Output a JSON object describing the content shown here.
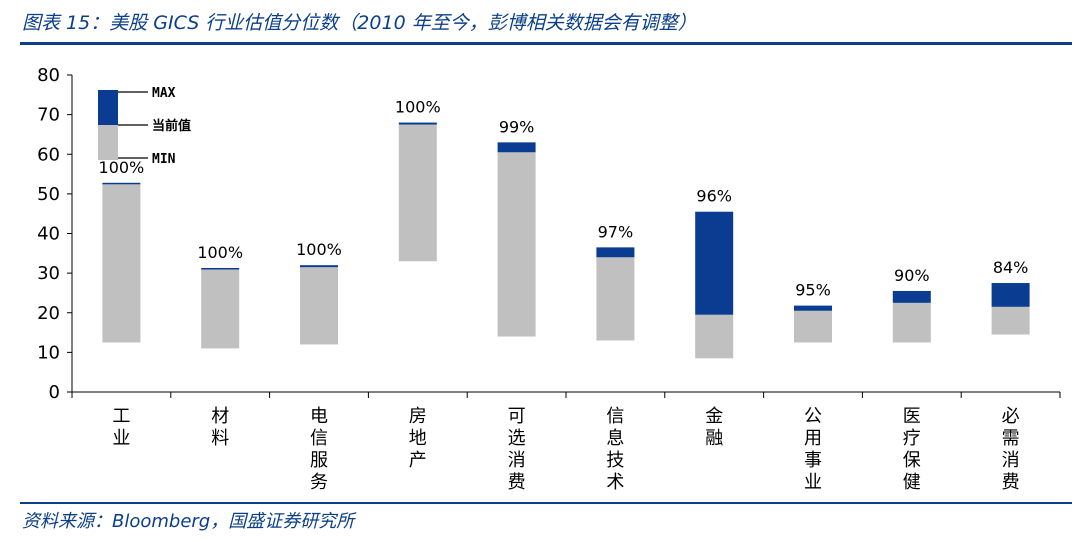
{
  "header": {
    "title": "图表 15：美股 GICS 行业估值分位数（2010 年至今，彭博相关数据会有调整）"
  },
  "footer": {
    "source": "资料来源：Bloomberg，国盛证券研究所"
  },
  "legend": {
    "max_label": "MAX",
    "current_label": "当前值",
    "min_label": "MIN"
  },
  "colors": {
    "range": "#c0c0c0",
    "upper": "#0a3d91",
    "rule": "#0b3f8a"
  },
  "chart_data": {
    "type": "bar",
    "subtype": "floating-range",
    "ylim": [
      0,
      80
    ],
    "yticks": [
      0,
      10,
      20,
      30,
      40,
      50,
      60,
      70,
      80
    ],
    "categories": [
      "工业",
      "材料",
      "电信服务",
      "房地产",
      "可选消费",
      "信息技术",
      "金融",
      "公用事业",
      "医疗保健",
      "必需消费"
    ],
    "min": [
      12.5,
      11,
      12,
      33,
      14,
      13,
      8.5,
      12.5,
      12.5,
      14.5
    ],
    "current": [
      52.5,
      31,
      31.5,
      67.5,
      60.5,
      34,
      19.5,
      20.5,
      22.5,
      21.5
    ],
    "max": [
      52.8,
      31.3,
      32,
      68,
      63,
      36.5,
      45.5,
      21.8,
      25.5,
      27.5
    ],
    "percentile_labels": [
      "100%",
      "100%",
      "100%",
      "100%",
      "99%",
      "97%",
      "96%",
      "95%",
      "90%",
      "84%"
    ]
  }
}
